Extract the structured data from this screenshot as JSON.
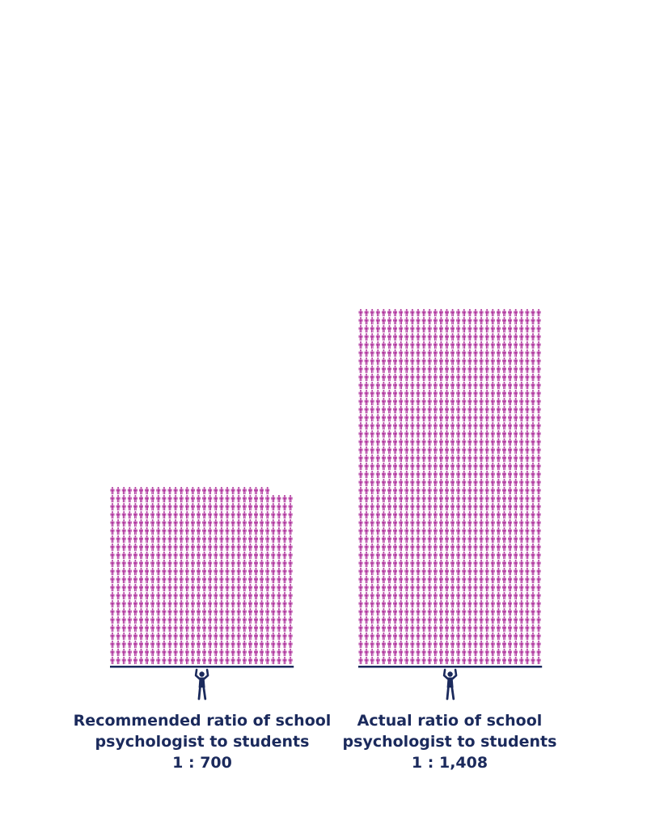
{
  "colors": {
    "student": "#b23aa0",
    "psychologist": "#1b2a5c",
    "text": "#1b2a5c"
  },
  "icons": {
    "student": "student-person-icon",
    "psychologist": "psychologist-lifting-icon"
  },
  "chart_data": {
    "type": "pictogram",
    "unit": "1 icon = 1 student",
    "series": [
      {
        "caption_line1": "Recommended ratio of school",
        "caption_line2": "psychologist to students",
        "ratio_label": "1 : 700",
        "psychologists": 1,
        "students": 700
      },
      {
        "caption_line1": "Actual ratio of school",
        "caption_line2": "psychologist to students",
        "ratio_label": "1 : 1,408",
        "psychologists": 1,
        "students": 1408
      }
    ]
  }
}
